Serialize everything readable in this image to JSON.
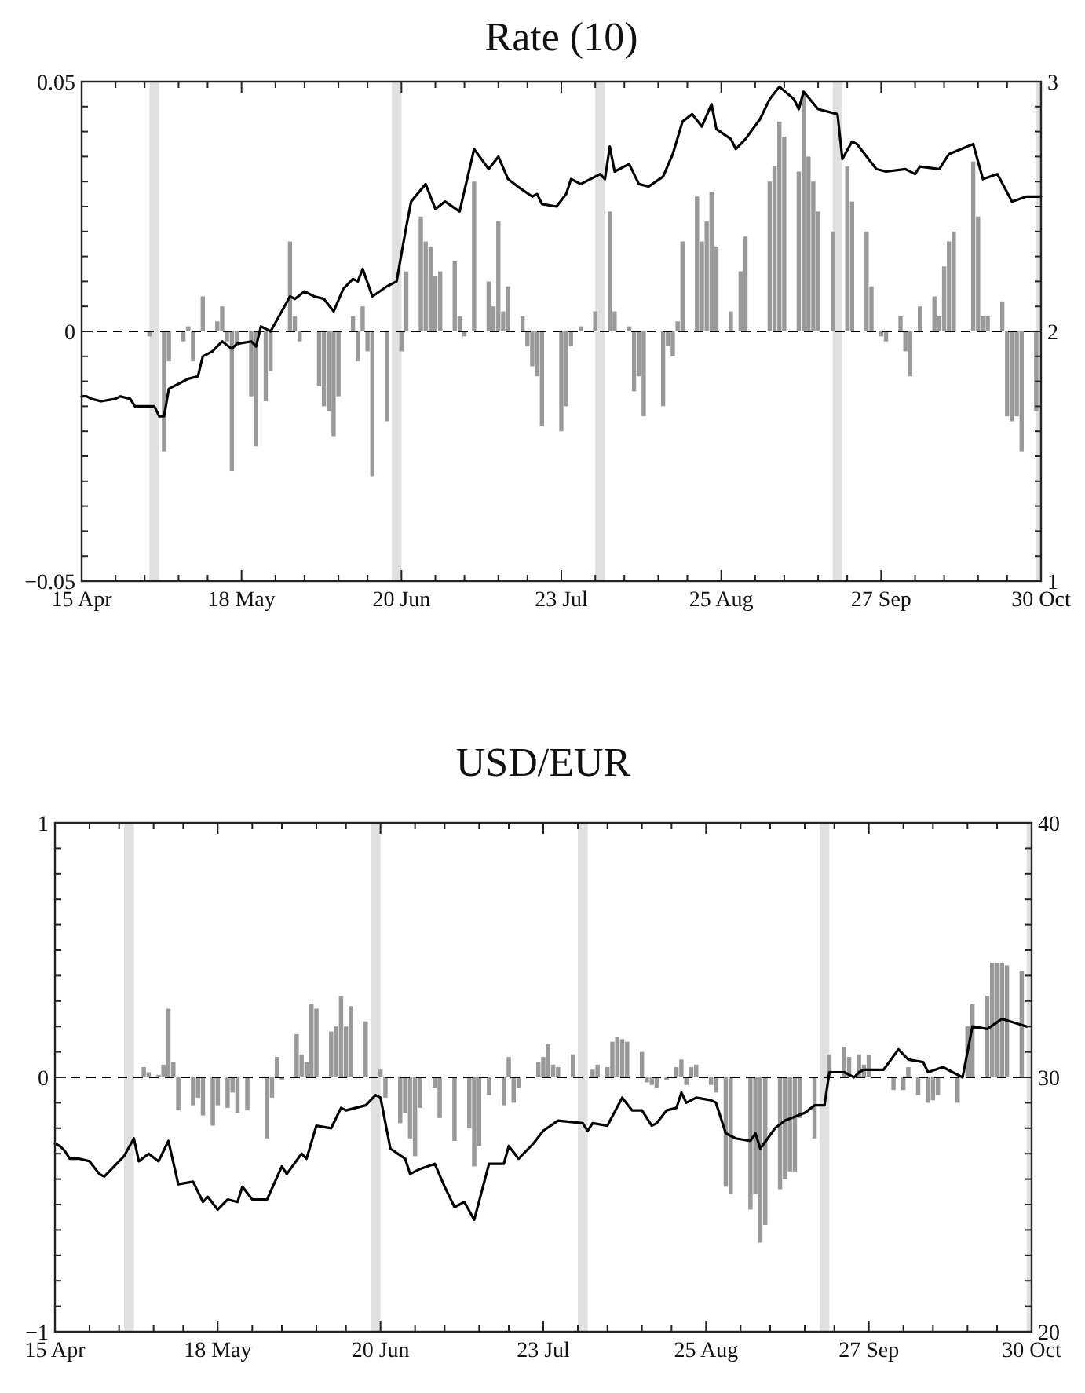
{
  "chart_data": [
    {
      "type": "bar",
      "title": "Rate (10)",
      "xlim": [
        "--04-15",
        "--10-30"
      ],
      "xticks": [
        {
          "value": "--04-15",
          "label": "15 Apr"
        },
        {
          "value": "--04-22",
          "label": null
        },
        {
          "value": "--04-28",
          "label": null
        },
        {
          "value": "--05-05",
          "label": null
        },
        {
          "value": "--05-11",
          "label": null
        },
        {
          "value": "--05-18",
          "label": "18 May"
        },
        {
          "value": "--05-25",
          "label": null
        },
        {
          "value": "--05-31",
          "label": null
        },
        {
          "value": "--06-07",
          "label": null
        },
        {
          "value": "--06-13",
          "label": null
        },
        {
          "value": "--06-20",
          "label": "20 Jun"
        },
        {
          "value": "--06-27",
          "label": null
        },
        {
          "value": "--07-03",
          "label": null
        },
        {
          "value": "--07-10",
          "label": null
        },
        {
          "value": "--07-16",
          "label": null
        },
        {
          "value": "--07-23",
          "label": "23 Jul"
        },
        {
          "value": "--07-30",
          "label": null
        },
        {
          "value": "--08-05",
          "label": null
        },
        {
          "value": "--08-12",
          "label": null
        },
        {
          "value": "--08-18",
          "label": null
        },
        {
          "value": "--08-25",
          "label": "25 Aug"
        },
        {
          "value": "--09-01",
          "label": null
        },
        {
          "value": "--09-07",
          "label": null
        },
        {
          "value": "--09-14",
          "label": null
        },
        {
          "value": "--09-20",
          "label": null
        },
        {
          "value": "--09-27",
          "label": "27 Sep"
        },
        {
          "value": "--10-04",
          "label": null
        },
        {
          "value": "--10-10",
          "label": null
        },
        {
          "value": "--10-17",
          "label": null
        },
        {
          "value": "--10-23",
          "label": null
        },
        {
          "value": "--10-30",
          "label": "30 Oct"
        }
      ],
      "ylim": [
        -0.05,
        0.05
      ],
      "yticks": [
        {
          "value": -0.05,
          "label": "−0.05"
        },
        {
          "value": -0.045,
          "label": null
        },
        {
          "value": -0.04,
          "label": null
        },
        {
          "value": -0.035,
          "label": null
        },
        {
          "value": -0.03,
          "label": null
        },
        {
          "value": -0.025,
          "label": null
        },
        {
          "value": -0.02,
          "label": null
        },
        {
          "value": -0.015,
          "label": null
        },
        {
          "value": -0.01,
          "label": null
        },
        {
          "value": -0.005,
          "label": null
        },
        0,
        {
          "value": 0.005,
          "label": null
        },
        {
          "value": 0.01,
          "label": null
        },
        {
          "value": 0.015,
          "label": null
        },
        {
          "value": 0.02,
          "label": null
        },
        {
          "value": 0.025,
          "label": null
        },
        {
          "value": 0.03,
          "label": null
        },
        {
          "value": 0.035,
          "label": null
        },
        {
          "value": 0.04,
          "label": null
        },
        {
          "value": 0.045,
          "label": null
        },
        0.05
      ],
      "y2lim": [
        1,
        3
      ],
      "y2ticks": [
        1,
        {
          "value": 1.1,
          "label": null
        },
        {
          "value": 1.2,
          "label": null
        },
        {
          "value": 1.3,
          "label": null
        },
        {
          "value": 1.4,
          "label": null
        },
        {
          "value": 1.5,
          "label": null
        },
        {
          "value": 1.6,
          "label": null
        },
        {
          "value": 1.7,
          "label": null
        },
        {
          "value": 1.8,
          "label": null
        },
        {
          "value": 1.9,
          "label": null
        },
        2,
        {
          "value": 2.1,
          "label": null
        },
        {
          "value": 2.2,
          "label": null
        },
        {
          "value": 2.3,
          "label": null
        },
        {
          "value": 2.4,
          "label": null
        },
        {
          "value": 2.5,
          "label": null
        },
        {
          "value": 2.6,
          "label": null
        },
        {
          "value": 2.7,
          "label": null
        },
        {
          "value": 2.8,
          "label": null
        },
        {
          "value": 2.9,
          "label": null
        },
        3
      ],
      "ref_lines": [
        {
          "axis": "y",
          "value": 0,
          "line_style": "dashed",
          "color": "#000000"
        }
      ],
      "bands": [
        {
          "axis": "x",
          "from": "--04-29",
          "to": "--05-01",
          "color": "#e0e0e0"
        },
        {
          "axis": "x",
          "from": "--06-18",
          "to": "--06-20",
          "color": "#e0e0e0"
        },
        {
          "axis": "x",
          "from": "--07-30",
          "to": "--08-01",
          "color": "#e0e0e0"
        },
        {
          "axis": "x",
          "from": "--09-17",
          "to": "--09-19",
          "color": "#e0e0e0"
        },
        {
          "axis": "x",
          "from": "--10-29",
          "to": "--10-30",
          "color": "#e0e0e0"
        }
      ],
      "series": [
        {
          "type": "bar",
          "color": "#999999",
          "x": [
            "--04-29",
            "--05-02",
            "--05-03",
            "--05-06",
            "--05-07",
            "--05-08",
            "--05-10",
            "--05-13",
            "--05-14",
            "--05-15",
            "--05-16",
            "--05-17",
            "--05-20",
            "--05-21",
            "--05-23",
            "--05-24",
            "--05-28",
            "--05-29",
            "--05-30",
            "--06-03",
            "--06-04",
            "--06-05",
            "--06-06",
            "--06-07",
            "--06-10",
            "--06-11",
            "--06-12",
            "--06-13",
            "--06-14",
            "--06-17",
            "--06-20",
            "--06-21",
            "--06-24",
            "--06-25",
            "--06-26",
            "--06-27",
            "--06-28",
            "--07-01",
            "--07-02",
            "--07-03",
            "--07-05",
            "--07-08",
            "--07-09",
            "--07-10",
            "--07-11",
            "--07-12",
            "--07-15",
            "--07-16",
            "--07-17",
            "--07-18",
            "--07-19",
            "--07-23",
            "--07-24",
            "--07-25",
            "--07-27",
            "--07-30",
            "--08-02",
            "--08-03",
            "--08-06",
            "--08-07",
            "--08-08",
            "--08-09",
            "--08-13",
            "--08-14",
            "--08-15",
            "--08-16",
            "--08-17",
            "--08-20",
            "--08-21",
            "--08-22",
            "--08-23",
            "--08-24",
            "--08-27",
            "--08-29",
            "--08-30",
            "--09-04",
            "--09-05",
            "--09-06",
            "--09-07",
            "--09-10",
            "--09-11",
            "--09-12",
            "--09-13",
            "--09-14",
            "--09-17",
            "--09-20",
            "--09-21",
            "--09-24",
            "--09-25",
            "--09-27",
            "--09-28",
            "--10-01",
            "--10-02",
            "--10-03",
            "--10-05",
            "--10-08",
            "--10-09",
            "--10-10",
            "--10-11",
            "--10-12",
            "--10-16",
            "--10-17",
            "--10-18",
            "--10-19",
            "--10-22",
            "--10-23",
            "--10-24",
            "--10-25",
            "--10-26",
            "--10-29"
          ],
          "values": [
            -0.001,
            -0.024,
            -0.006,
            -0.002,
            0.001,
            -0.006,
            0.007,
            0.002,
            0.005,
            -0.002,
            -0.028,
            -0.003,
            -0.013,
            -0.023,
            -0.014,
            -0.008,
            0.018,
            0.003,
            -0.002,
            -0.011,
            -0.015,
            -0.016,
            -0.021,
            -0.013,
            0.003,
            -0.006,
            0.005,
            -0.004,
            -0.029,
            -0.018,
            -0.004,
            0.012,
            0.023,
            0.018,
            0.017,
            0.011,
            0.012,
            0.014,
            0.003,
            -0.001,
            0.03,
            0.01,
            0.005,
            0.022,
            0.004,
            0.009,
            0.003,
            -0.003,
            -0.007,
            -0.009,
            -0.019,
            -0.02,
            -0.015,
            -0.003,
            0.001,
            0.004,
            0.024,
            0.004,
            0.001,
            -0.012,
            -0.009,
            -0.017,
            -0.015,
            -0.003,
            -0.005,
            0.002,
            0.018,
            0.027,
            0.018,
            0.022,
            0.028,
            0.017,
            0.004,
            0.012,
            0.019,
            0.03,
            0.033,
            0.042,
            0.039,
            0.032,
            0.048,
            0.035,
            0.03,
            0.024,
            0.02,
            0.033,
            0.026,
            0.02,
            0.009,
            -0.001,
            -0.002,
            0.003,
            -0.004,
            -0.009,
            0.005,
            0.007,
            0.003,
            0.013,
            0.018,
            0.02,
            0.034,
            0.023,
            0.003,
            0.003,
            0.006,
            -0.017,
            -0.018,
            -0.017,
            -0.024,
            -0.016
          ]
        },
        {
          "type": "line",
          "axis": "y2",
          "color": "#000000",
          "x": [
            "--04-15",
            "--04-16",
            "--04-17",
            "--04-19",
            "--04-22",
            "--04-23",
            "--04-25",
            "--04-26",
            "--04-30",
            "--05-01",
            "--05-02",
            "--05-03",
            "--05-05",
            "--05-07",
            "--05-09",
            "--05-10",
            "--05-12",
            "--05-14",
            "--05-16",
            "--05-17",
            "--05-20",
            "--05-21",
            "--05-22",
            "--05-24",
            "--05-28",
            "--05-29",
            "--05-31",
            "--06-02",
            "--06-04",
            "--06-06",
            "--06-08",
            "--06-10",
            "--06-11",
            "--06-12",
            "--06-14",
            "--06-17",
            "--06-19",
            "--06-21",
            "--06-22",
            "--06-25",
            "--06-27",
            "--06-29",
            "--07-02",
            "--07-05",
            "--07-08",
            "--07-10",
            "--07-12",
            "--07-14",
            "--07-17",
            "--07-18",
            "--07-19",
            "--07-22",
            "--07-24",
            "--07-25",
            "--07-27",
            "--07-31",
            "--08-01",
            "--08-02",
            "--08-03",
            "--08-06",
            "--08-08",
            "--08-10",
            "--08-13",
            "--08-15",
            "--08-17",
            "--08-19",
            "--08-21",
            "--08-23",
            "--08-24",
            "--08-27",
            "--08-28",
            "--08-30",
            "--09-02",
            "--09-04",
            "--09-06",
            "--09-09",
            "--09-10",
            "--09-11",
            "--09-14",
            "--09-18",
            "--09-19",
            "--09-21",
            "--09-22",
            "--09-26",
            "--09-28",
            "--10-02",
            "--10-04",
            "--10-05",
            "--10-09",
            "--10-11",
            "--10-16",
            "--10-18",
            "--10-21",
            "--10-24",
            "--10-27",
            "--10-30"
          ],
          "values": [
            1.74,
            1.74,
            1.73,
            1.72,
            1.73,
            1.74,
            1.73,
            1.7,
            1.7,
            1.66,
            1.66,
            1.77,
            1.79,
            1.81,
            1.82,
            1.9,
            1.92,
            1.96,
            1.93,
            1.95,
            1.96,
            1.94,
            2.02,
            2.0,
            2.14,
            2.13,
            2.16,
            2.14,
            2.13,
            2.08,
            2.17,
            2.21,
            2.2,
            2.25,
            2.14,
            2.18,
            2.2,
            2.42,
            2.52,
            2.59,
            2.49,
            2.52,
            2.48,
            2.73,
            2.65,
            2.7,
            2.61,
            2.58,
            2.54,
            2.55,
            2.51,
            2.5,
            2.55,
            2.61,
            2.59,
            2.63,
            2.61,
            2.74,
            2.64,
            2.67,
            2.59,
            2.58,
            2.62,
            2.71,
            2.84,
            2.87,
            2.82,
            2.91,
            2.81,
            2.77,
            2.73,
            2.77,
            2.85,
            2.93,
            2.98,
            2.93,
            2.89,
            2.96,
            2.89,
            2.87,
            2.69,
            2.76,
            2.75,
            2.65,
            2.64,
            2.65,
            2.63,
            2.66,
            2.65,
            2.71,
            2.75,
            2.61,
            2.63,
            2.52,
            2.54,
            2.54
          ]
        }
      ]
    },
    {
      "type": "bar",
      "title": "USD/EUR",
      "xlim": [
        "--04-15",
        "--10-30"
      ],
      "xticks": [
        {
          "value": "--04-15",
          "label": "15 Apr"
        },
        {
          "value": "--04-22",
          "label": null
        },
        {
          "value": "--04-28",
          "label": null
        },
        {
          "value": "--05-05",
          "label": null
        },
        {
          "value": "--05-11",
          "label": null
        },
        {
          "value": "--05-18",
          "label": "18 May"
        },
        {
          "value": "--05-25",
          "label": null
        },
        {
          "value": "--05-31",
          "label": null
        },
        {
          "value": "--06-07",
          "label": null
        },
        {
          "value": "--06-13",
          "label": null
        },
        {
          "value": "--06-20",
          "label": "20 Jun"
        },
        {
          "value": "--06-27",
          "label": null
        },
        {
          "value": "--07-03",
          "label": null
        },
        {
          "value": "--07-10",
          "label": null
        },
        {
          "value": "--07-16",
          "label": null
        },
        {
          "value": "--07-23",
          "label": "23 Jul"
        },
        {
          "value": "--07-30",
          "label": null
        },
        {
          "value": "--08-05",
          "label": null
        },
        {
          "value": "--08-12",
          "label": null
        },
        {
          "value": "--08-18",
          "label": null
        },
        {
          "value": "--08-25",
          "label": "25 Aug"
        },
        {
          "value": "--09-01",
          "label": null
        },
        {
          "value": "--09-07",
          "label": null
        },
        {
          "value": "--09-14",
          "label": null
        },
        {
          "value": "--09-20",
          "label": null
        },
        {
          "value": "--09-27",
          "label": "27 Sep"
        },
        {
          "value": "--10-04",
          "label": null
        },
        {
          "value": "--10-10",
          "label": null
        },
        {
          "value": "--10-17",
          "label": null
        },
        {
          "value": "--10-23",
          "label": null
        },
        {
          "value": "--10-30",
          "label": "30 Oct"
        }
      ],
      "ylim": [
        -1,
        1
      ],
      "yticks": [
        {
          "value": -1,
          "label": "−1"
        },
        {
          "value": -0.9,
          "label": null
        },
        {
          "value": -0.8,
          "label": null
        },
        {
          "value": -0.7,
          "label": null
        },
        {
          "value": -0.6,
          "label": null
        },
        {
          "value": -0.5,
          "label": null
        },
        {
          "value": -0.4,
          "label": null
        },
        {
          "value": -0.3,
          "label": null
        },
        {
          "value": -0.2,
          "label": null
        },
        {
          "value": -0.1,
          "label": null
        },
        0,
        {
          "value": 0.1,
          "label": null
        },
        {
          "value": 0.2,
          "label": null
        },
        {
          "value": 0.3,
          "label": null
        },
        {
          "value": 0.4,
          "label": null
        },
        {
          "value": 0.5,
          "label": null
        },
        {
          "value": 0.6,
          "label": null
        },
        {
          "value": 0.7,
          "label": null
        },
        {
          "value": 0.8,
          "label": null
        },
        {
          "value": 0.9,
          "label": null
        },
        1
      ],
      "y2lim": [
        20,
        40
      ],
      "y2ticks": [
        20,
        {
          "value": 21,
          "label": null
        },
        {
          "value": 22,
          "label": null
        },
        {
          "value": 23,
          "label": null
        },
        {
          "value": 24,
          "label": null
        },
        {
          "value": 25,
          "label": null
        },
        {
          "value": 26,
          "label": null
        },
        {
          "value": 27,
          "label": null
        },
        {
          "value": 28,
          "label": null
        },
        {
          "value": 29,
          "label": null
        },
        30,
        {
          "value": 31,
          "label": null
        },
        {
          "value": 32,
          "label": null
        },
        {
          "value": 33,
          "label": null
        },
        {
          "value": 34,
          "label": null
        },
        {
          "value": 35,
          "label": null
        },
        {
          "value": 36,
          "label": null
        },
        {
          "value": 37,
          "label": null
        },
        {
          "value": 38,
          "label": null
        },
        {
          "value": 39,
          "label": null
        },
        40
      ],
      "ref_lines": [
        {
          "axis": "y",
          "value": 0,
          "line_style": "dashed",
          "color": "#000000"
        }
      ],
      "bands": [
        {
          "axis": "x",
          "from": "--04-29",
          "to": "--05-01",
          "color": "#e0e0e0"
        },
        {
          "axis": "x",
          "from": "--06-18",
          "to": "--06-20",
          "color": "#e0e0e0"
        },
        {
          "axis": "x",
          "from": "--07-30",
          "to": "--08-01",
          "color": "#e0e0e0"
        },
        {
          "axis": "x",
          "from": "--09-17",
          "to": "--09-19",
          "color": "#e0e0e0"
        },
        {
          "axis": "x",
          "from": "--10-29",
          "to": "--10-30",
          "color": "#e0e0e0"
        }
      ],
      "series": [
        {
          "type": "bar",
          "color": "#999999",
          "x": [
            "--05-03",
            "--05-04",
            "--05-06",
            "--05-07",
            "--05-08",
            "--05-09",
            "--05-10",
            "--05-13",
            "--05-14",
            "--05-15",
            "--05-17",
            "--05-18",
            "--05-20",
            "--05-21",
            "--05-22",
            "--05-24",
            "--05-28",
            "--05-29",
            "--05-30",
            "--05-31",
            "--06-03",
            "--06-04",
            "--06-05",
            "--06-06",
            "--06-07",
            "--06-10",
            "--06-11",
            "--06-12",
            "--06-13",
            "--06-14",
            "--06-17",
            "--06-20",
            "--06-21",
            "--06-24",
            "--06-25",
            "--06-26",
            "--06-27",
            "--06-28",
            "--07-01",
            "--07-02",
            "--07-05",
            "--07-08",
            "--07-09",
            "--07-10",
            "--07-12",
            "--07-15",
            "--07-16",
            "--07-17",
            "--07-18",
            "--07-22",
            "--07-23",
            "--07-24",
            "--07-25",
            "--07-26",
            "--07-29",
            "--08-02",
            "--08-03",
            "--08-05",
            "--08-06",
            "--08-07",
            "--08-08",
            "--08-09",
            "--08-12",
            "--08-13",
            "--08-14",
            "--08-15",
            "--08-17",
            "--08-19",
            "--08-20",
            "--08-21",
            "--08-22",
            "--08-23",
            "--08-26",
            "--08-27",
            "--08-29",
            "--08-30",
            "--09-03",
            "--09-04",
            "--09-05",
            "--09-06",
            "--09-09",
            "--09-10",
            "--09-11",
            "--09-12",
            "--09-13",
            "--09-16",
            "--09-19",
            "--09-22",
            "--09-23",
            "--09-25",
            "--09-26",
            "--09-27",
            "--10-02",
            "--10-04",
            "--10-05",
            "--10-07",
            "--10-09",
            "--10-10",
            "--10-11",
            "--10-15",
            "--10-17",
            "--10-18",
            "--10-21",
            "--10-22",
            "--10-23",
            "--10-24",
            "--10-25",
            "--10-28"
          ],
          "values": [
            0.04,
            0.02,
            0.01,
            0.05,
            0.27,
            0.06,
            -0.13,
            -0.11,
            -0.08,
            -0.15,
            -0.19,
            -0.11,
            -0.12,
            -0.06,
            -0.14,
            -0.13,
            -0.24,
            -0.08,
            0.08,
            -0.01,
            0.17,
            0.09,
            0.06,
            0.29,
            0.27,
            0.18,
            0.2,
            0.32,
            0.2,
            0.28,
            0.22,
            0.03,
            -0.08,
            -0.18,
            -0.14,
            -0.24,
            -0.31,
            -0.12,
            -0.04,
            -0.16,
            -0.25,
            -0.2,
            -0.35,
            -0.27,
            -0.07,
            -0.11,
            0.08,
            -0.1,
            -0.04,
            0.06,
            0.08,
            0.13,
            0.05,
            0.04,
            0.09,
            0.03,
            0.05,
            0.04,
            0.14,
            0.16,
            0.15,
            0.14,
            0.1,
            -0.02,
            -0.03,
            -0.04,
            -0.01,
            0.04,
            0.07,
            -0.03,
            0.04,
            0.05,
            -0.03,
            -0.06,
            -0.43,
            -0.46,
            -0.52,
            -0.46,
            -0.65,
            -0.58,
            -0.44,
            -0.4,
            -0.37,
            -0.37,
            -0.16,
            -0.24,
            0.09,
            0.12,
            0.08,
            0.09,
            0.05,
            0.09,
            -0.05,
            -0.05,
            0.04,
            -0.07,
            -0.1,
            -0.09,
            -0.07,
            -0.1,
            0.2,
            0.29,
            0.32,
            0.45,
            0.45,
            0.45,
            0.44,
            0.42
          ]
        },
        {
          "type": "line",
          "axis": "y2",
          "color": "#000000",
          "x": [
            "--04-15",
            "--04-16",
            "--04-17",
            "--04-18",
            "--04-20",
            "--04-22",
            "--04-24",
            "--04-25",
            "--04-29",
            "--05-01",
            "--05-02",
            "--05-04",
            "--05-06",
            "--05-08",
            "--05-10",
            "--05-13",
            "--05-15",
            "--05-16",
            "--05-18",
            "--05-20",
            "--05-22",
            "--05-23",
            "--05-25",
            "--05-28",
            "--05-31",
            "--06-01",
            "--06-04",
            "--06-05",
            "--06-07",
            "--06-10",
            "--06-12",
            "--06-13",
            "--06-17",
            "--06-19",
            "--06-20",
            "--06-22",
            "--06-25",
            "--06-26",
            "--06-28",
            "--07-01",
            "--07-03",
            "--07-05",
            "--07-07",
            "--07-09",
            "--07-12",
            "--07-15",
            "--07-16",
            "--07-18",
            "--07-21",
            "--07-23",
            "--07-26",
            "--07-31",
            "--08-01",
            "--08-02",
            "--08-05",
            "--08-08",
            "--08-10",
            "--08-12",
            "--08-14",
            "--08-15",
            "--08-17",
            "--08-19",
            "--08-20",
            "--08-21",
            "--08-23",
            "--08-26",
            "--08-27",
            "--08-29",
            "--08-31",
            "--09-03",
            "--09-04",
            "--09-05",
            "--09-08",
            "--09-10",
            "--09-14",
            "--09-16",
            "--09-18",
            "--09-19",
            "--09-22",
            "--09-24",
            "--09-25",
            "--09-26",
            "--09-30",
            "--10-03",
            "--10-05",
            "--10-08",
            "--10-09",
            "--10-12",
            "--10-16",
            "--10-18",
            "--10-21",
            "--10-24",
            "--10-29"
          ],
          "values": [
            27.4,
            27.3,
            27.1,
            26.8,
            26.8,
            26.7,
            26.2,
            26.1,
            26.9,
            27.6,
            26.7,
            27.0,
            26.7,
            27.5,
            25.8,
            25.9,
            25.1,
            25.3,
            24.8,
            25.2,
            25.1,
            25.7,
            25.2,
            25.2,
            26.5,
            26.2,
            27.0,
            26.8,
            28.1,
            28.0,
            28.8,
            28.7,
            28.9,
            29.3,
            29.2,
            27.2,
            26.8,
            26.2,
            26.4,
            26.6,
            25.7,
            24.9,
            25.1,
            24.4,
            26.6,
            26.6,
            27.3,
            26.8,
            27.4,
            27.9,
            28.3,
            28.2,
            27.9,
            28.2,
            28.1,
            29.2,
            28.7,
            28.7,
            28.1,
            28.2,
            28.7,
            28.8,
            29.4,
            29.0,
            29.2,
            29.1,
            29.0,
            27.8,
            27.6,
            27.5,
            27.8,
            27.2,
            28.0,
            28.3,
            28.6,
            28.9,
            28.9,
            30.2,
            30.2,
            30.0,
            30.2,
            30.3,
            30.3,
            31.1,
            30.7,
            30.6,
            30.2,
            30.4,
            30.0,
            32.0,
            31.9,
            32.3,
            32.0
          ]
        }
      ]
    }
  ]
}
